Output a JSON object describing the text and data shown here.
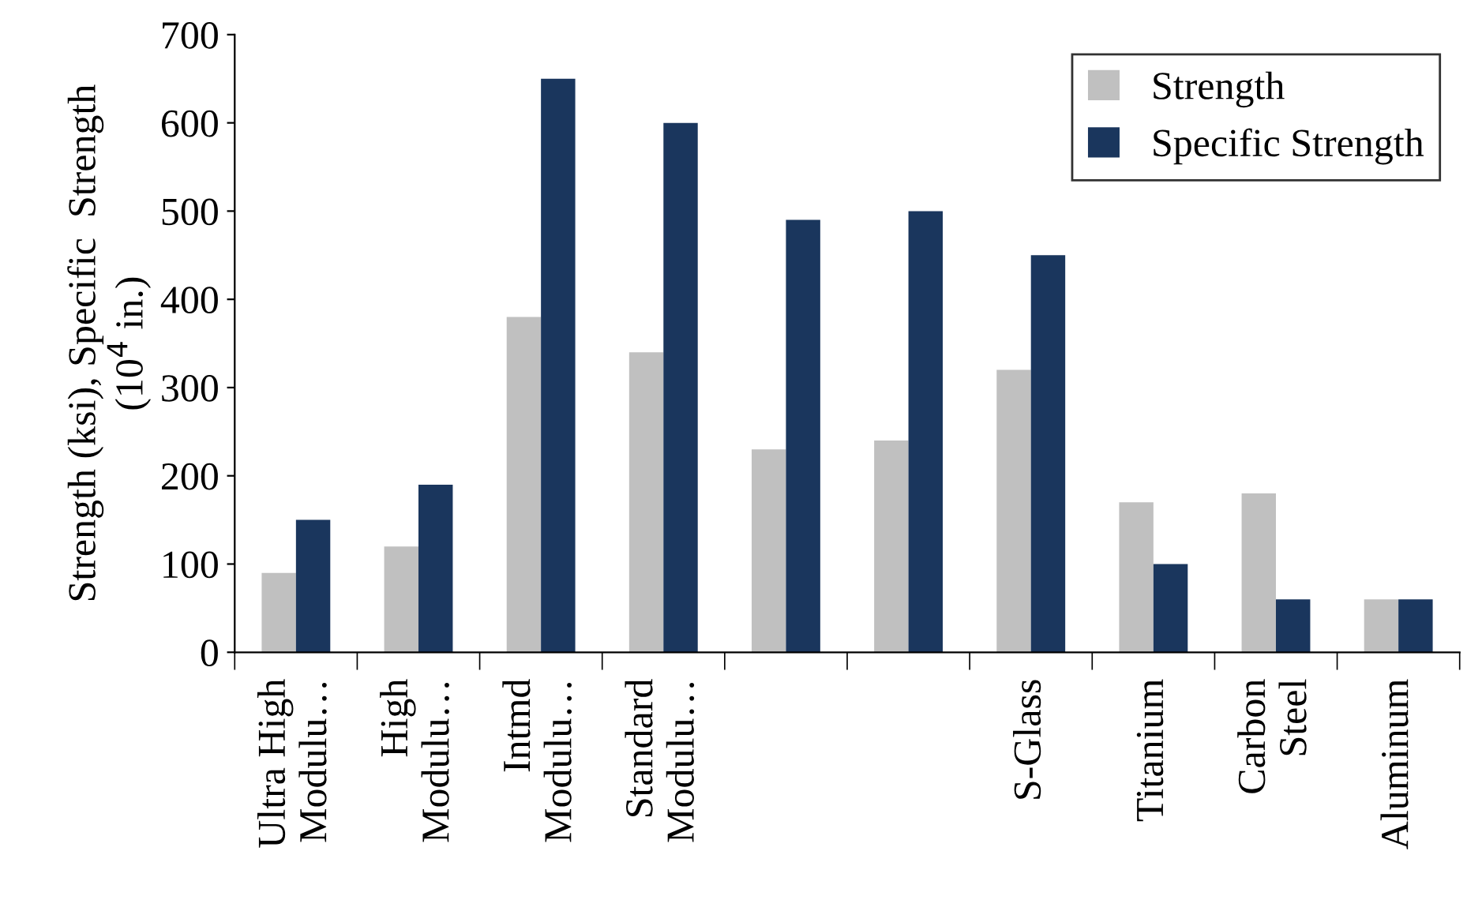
{
  "chart_data": {
    "type": "bar",
    "categories": [
      "Ultra High\nModulu…",
      "High\nModulu…",
      "Intmd\nModulu…",
      "Standard\nModulu…",
      null,
      null,
      "S-Glass",
      "Titanium",
      "Carbon\nSteel",
      "Aluminum"
    ],
    "series": [
      {
        "name": "Strength",
        "color": "#c0c0c0",
        "values": [
          90,
          120,
          380,
          340,
          230,
          240,
          320,
          170,
          180,
          60
        ]
      },
      {
        "name": "Specific Strength",
        "color": "#1a365d",
        "values": [
          150,
          190,
          650,
          600,
          490,
          500,
          450,
          100,
          60,
          60
        ]
      }
    ],
    "ylabel": "Strength (ksi), Specific  Strength\n(10$^{4}$ in.)",
    "ylim": [
      0,
      700
    ],
    "yticks": [
      0,
      100,
      200,
      300,
      400,
      500,
      600,
      700
    ],
    "grid": false,
    "legend": "top right"
  }
}
